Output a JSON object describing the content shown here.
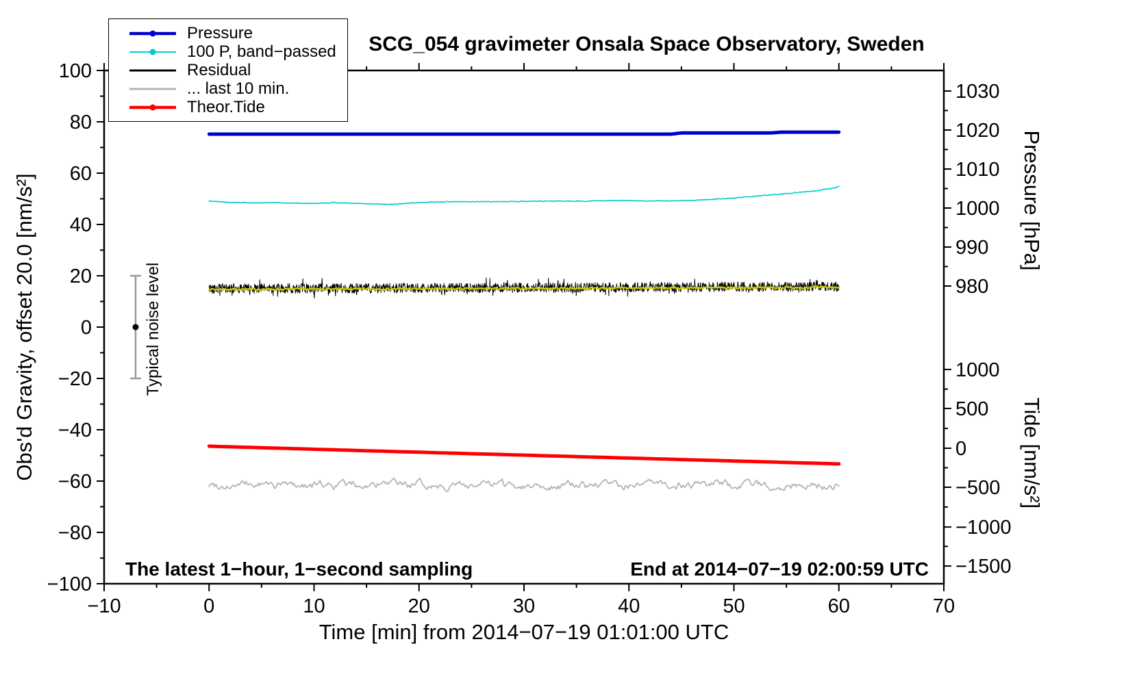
{
  "page": {
    "background": "#ffffff"
  },
  "chart_data": {
    "type": "line",
    "title": "SCG_054 gravimeter Onsala Space Observatory, Sweden",
    "xlabel": "Time [min] from 2014−07−19 01:01:00 UTC",
    "ylabel_left": "Obs'd Gravity, offset 20.0 [nm/s²]",
    "right_axis_labels": {
      "pressure": "Pressure [hPa]",
      "tide": "Tide [nm/s²]"
    },
    "annotations": {
      "bottom_left": "The latest 1−hour, 1−second sampling",
      "bottom_right": "End at 2014−07−19 02:00:59 UTC",
      "noise_bar_label": "Typical noise level"
    },
    "xlim": [
      -10,
      70
    ],
    "ylim_left": [
      -100,
      100
    ],
    "x_ticks": [
      -10,
      0,
      10,
      20,
      30,
      40,
      50,
      60,
      70
    ],
    "x_minor_step": 5,
    "y_ticks_left": [
      -100,
      -80,
      -60,
      -40,
      -20,
      0,
      20,
      40,
      60,
      80,
      100
    ],
    "y_minor_step": 10,
    "grid": false,
    "legend_position": "top-left",
    "right_axes": [
      {
        "id": "pressure",
        "minor_step": 5,
        "ticks": [
          [
            1030,
            92.0
          ],
          [
            1020,
            76.8
          ],
          [
            1010,
            61.6
          ],
          [
            1000,
            46.4
          ],
          [
            990,
            31.2
          ],
          [
            980,
            16.0
          ]
        ]
      },
      {
        "id": "tide",
        "minor_step": 250,
        "ticks": [
          [
            1000,
            -16.5
          ],
          [
            500,
            -31.7
          ],
          [
            0,
            -47.2
          ],
          [
            -500,
            -62.4
          ],
          [
            -1000,
            -77.9
          ],
          [
            -1500,
            -93.1
          ]
        ]
      }
    ],
    "noise_bar": {
      "x": -7,
      "center": 0,
      "half_range": 20
    },
    "series": [
      {
        "id": "pressure",
        "axis": "pressure",
        "color": "#0000cc",
        "width": 5,
        "seed": 3,
        "noise": 0,
        "samples": 240,
        "points": [
          [
            0,
            1018.95
          ],
          [
            44,
            1018.95
          ],
          [
            45,
            1019.25
          ],
          [
            53.5,
            1019.25
          ],
          [
            54.5,
            1019.45
          ],
          [
            60,
            1019.45
          ]
        ]
      },
      {
        "id": "band-passed",
        "axis": "left",
        "color": "#00cccc",
        "width": 1.6,
        "seed": 5,
        "noise": 0.16,
        "samples": 700,
        "points": [
          [
            0,
            49.1
          ],
          [
            2,
            48.6
          ],
          [
            4,
            48.4
          ],
          [
            6,
            48.5
          ],
          [
            8,
            48.3
          ],
          [
            10,
            48.2
          ],
          [
            12,
            48.5
          ],
          [
            14,
            48.2
          ],
          [
            16,
            48.0
          ],
          [
            17.5,
            47.8
          ],
          [
            19,
            48.3
          ],
          [
            21,
            48.7
          ],
          [
            24,
            48.9
          ],
          [
            27,
            48.9
          ],
          [
            30,
            49.0
          ],
          [
            33,
            49.1
          ],
          [
            36,
            49.1
          ],
          [
            38,
            49.3
          ],
          [
            40,
            49.3
          ],
          [
            42,
            49.1
          ],
          [
            44,
            49.2
          ],
          [
            46,
            49.4
          ],
          [
            48,
            49.8
          ],
          [
            50,
            50.3
          ],
          [
            52,
            51.0
          ],
          [
            54,
            51.7
          ],
          [
            56,
            52.4
          ],
          [
            58,
            53.2
          ],
          [
            59.5,
            54.2
          ],
          [
            60,
            54.8
          ]
        ]
      },
      {
        "id": "residual",
        "axis": "left",
        "color": "#000000",
        "width": 1,
        "seed": 42,
        "noise": 1.9,
        "spike": 0.05,
        "samples": 1700,
        "points": [
          [
            0,
            15.0
          ],
          [
            20,
            15.2
          ],
          [
            40,
            15.5
          ],
          [
            60,
            15.8
          ]
        ]
      },
      {
        "id": "residual-smooth",
        "axis": "left",
        "color": "#c8c800",
        "width": 2.5,
        "seed": 7,
        "noise": 0.35,
        "samples": 500,
        "points": [
          [
            0,
            14.7
          ],
          [
            20,
            14.9
          ],
          [
            40,
            15.2
          ],
          [
            60,
            15.5
          ]
        ]
      },
      {
        "id": "last-10-min",
        "axis": "left",
        "color": "#b3b3b3",
        "width": 1.8,
        "seed": 99,
        "noise": 2.0,
        "smooth": true,
        "samples": 460,
        "points": [
          [
            0,
            -61.5
          ],
          [
            60,
            -61.5
          ]
        ]
      },
      {
        "id": "theor-tide",
        "axis": "tide",
        "color": "#ff0000",
        "width": 5,
        "seed": 11,
        "noise": 0,
        "samples": 120,
        "points": [
          [
            0,
            24
          ],
          [
            15,
            -34
          ],
          [
            30,
            -90
          ],
          [
            45,
            -146
          ],
          [
            60,
            -201
          ]
        ]
      }
    ],
    "legend": {
      "items": [
        {
          "id": "pressure",
          "label": "Pressure",
          "color": "#0000cc",
          "width": 4.5,
          "marker": true
        },
        {
          "id": "band-passed",
          "label": "100 P, band−passed",
          "color": "#00cccc",
          "width": 2,
          "marker": true
        },
        {
          "id": "residual",
          "label": "Residual",
          "color": "#000000",
          "width": 3,
          "marker": false
        },
        {
          "id": "last-10-min",
          "label": "... last 10 min.",
          "color": "#b3b3b3",
          "width": 3,
          "marker": false
        },
        {
          "id": "theor-tide",
          "label": "Theor.Tide",
          "color": "#ff0000",
          "width": 4.5,
          "marker": true
        }
      ]
    }
  }
}
